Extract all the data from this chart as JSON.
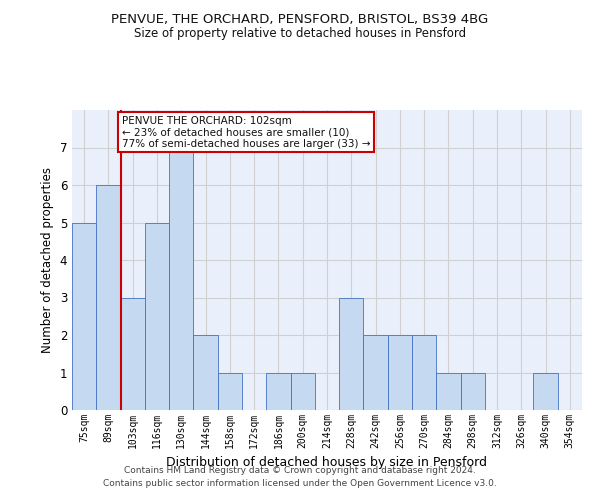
{
  "title_line1": "PENVUE, THE ORCHARD, PENSFORD, BRISTOL, BS39 4BG",
  "title_line2": "Size of property relative to detached houses in Pensford",
  "xlabel": "Distribution of detached houses by size in Pensford",
  "ylabel": "Number of detached properties",
  "categories": [
    "75sqm",
    "89sqm",
    "103sqm",
    "116sqm",
    "130sqm",
    "144sqm",
    "158sqm",
    "172sqm",
    "186sqm",
    "200sqm",
    "214sqm",
    "228sqm",
    "242sqm",
    "256sqm",
    "270sqm",
    "284sqm",
    "298sqm",
    "312sqm",
    "326sqm",
    "340sqm",
    "354sqm"
  ],
  "values": [
    5,
    6,
    3,
    5,
    7,
    2,
    1,
    0,
    1,
    1,
    0,
    3,
    2,
    2,
    2,
    1,
    1,
    0,
    0,
    1,
    0
  ],
  "bar_color": "#c5d9f1",
  "bar_edge_color": "#4472c4",
  "grid_color": "#d0d0d0",
  "vline_color": "#cc0000",
  "annotation_text": "PENVUE THE ORCHARD: 102sqm\n← 23% of detached houses are smaller (10)\n77% of semi-detached houses are larger (33) →",
  "annotation_box_color": "#ffffff",
  "annotation_box_edge": "#cc0000",
  "background_color": "#ffffff",
  "plot_bg_color": "#eaf0fb",
  "ylim": [
    0,
    8
  ],
  "yticks": [
    0,
    1,
    2,
    3,
    4,
    5,
    6,
    7
  ],
  "footer_line1": "Contains HM Land Registry data © Crown copyright and database right 2024.",
  "footer_line2": "Contains public sector information licensed under the Open Government Licence v3.0."
}
